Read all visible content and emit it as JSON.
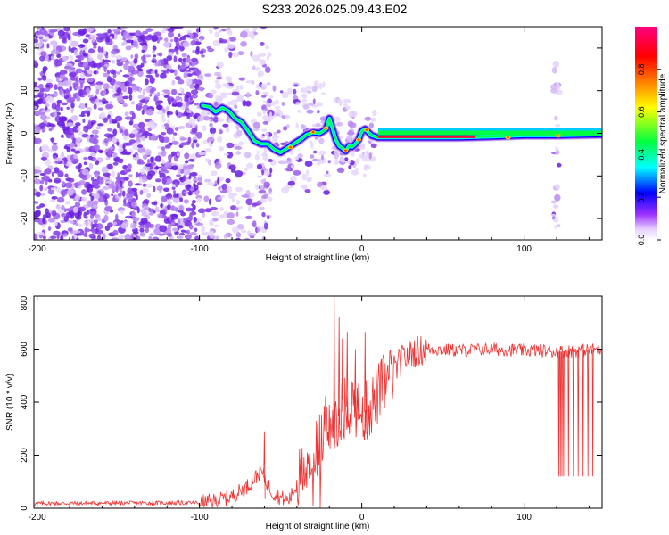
{
  "figure_title": "S233.2026.025.09.43.E02",
  "chart_data": [
    {
      "type": "heatmap",
      "title": "S233.2026.025.09.43.E02",
      "xlabel": "Height of straight line (km)",
      "ylabel": "Frequency (Hz)",
      "xlim": [
        -202,
        148
      ],
      "ylim": [
        -25,
        25
      ],
      "xticks": [
        -200,
        -100,
        0,
        100
      ],
      "xtick_labels": [
        "-200",
        "-100",
        "0",
        "100"
      ],
      "yticks": [
        -20,
        -10,
        0,
        10,
        20
      ],
      "ytick_labels": [
        "-20",
        "-10",
        "0",
        "10",
        "20"
      ],
      "colorbar": {
        "label": "Normalized spectral amplitude",
        "range": [
          0,
          1
        ],
        "ticks": [
          0.0,
          0.2,
          0.4,
          0.6,
          0.8
        ],
        "tick_labels": [
          "0.0",
          "0.2",
          "0.4",
          "0.6",
          "0.8"
        ],
        "colormap": [
          "#ffffff",
          "#d8b4ff",
          "#8a2be2",
          "#0000ff",
          "#00ffff",
          "#00ff00",
          "#ffff00",
          "#ff8000",
          "#ff0000",
          "#ff0080"
        ]
      },
      "ridge": {
        "x": [
          -98,
          -94,
          -90,
          -86,
          -82,
          -78,
          -74,
          -70,
          -66,
          -62,
          -58,
          -54,
          -50,
          -46,
          -42,
          -38,
          -34,
          -30,
          -26,
          -22,
          -20,
          -18,
          -16,
          -14,
          -12,
          -10,
          -8,
          -6,
          -4,
          -2,
          0,
          2,
          6,
          10,
          20,
          40,
          60,
          80,
          100,
          120,
          148
        ],
        "y": [
          6.5,
          6.2,
          5.0,
          6.0,
          5.2,
          3.5,
          2.5,
          0.5,
          -1.8,
          -2.5,
          -2.5,
          -3.8,
          -4.5,
          -3.5,
          -2.5,
          -1.5,
          -0.3,
          0.2,
          0.0,
          1.0,
          3.5,
          1.0,
          -1.5,
          -3.0,
          -3.5,
          -4.2,
          -3.0,
          -3.2,
          -2.5,
          -1.5,
          0.5,
          1.0,
          -0.5,
          -1.0,
          -1.0,
          -1.0,
          -1.0,
          -0.8,
          -0.5,
          -0.5,
          -0.3
        ]
      }
    },
    {
      "type": "line",
      "title": "",
      "xlabel": "Height of straight line (km)",
      "ylabel": "SNR (10 * v/v)",
      "xlim": [
        -202,
        148
      ],
      "ylim": [
        0,
        800
      ],
      "xticks": [
        -200,
        -100,
        0,
        100
      ],
      "xtick_labels": [
        "-200",
        "-100",
        "0",
        "100"
      ],
      "yticks": [
        0,
        200,
        400,
        600,
        800
      ],
      "ytick_labels": [
        "0",
        "200",
        "400",
        "600",
        "800"
      ],
      "color": "#ee3333",
      "envelope": {
        "x": [
          -202,
          -120,
          -100,
          -90,
          -80,
          -70,
          -62,
          -58,
          -55,
          -50,
          -45,
          -40,
          -35,
          -30,
          -25,
          -20,
          -15,
          -10,
          -5,
          0,
          5,
          10,
          15,
          20,
          25,
          30,
          40,
          60,
          80,
          100,
          110,
          120,
          148
        ],
        "y": [
          18,
          20,
          20,
          28,
          45,
          85,
          140,
          90,
          60,
          40,
          30,
          85,
          170,
          210,
          250,
          300,
          340,
          380,
          400,
          350,
          380,
          430,
          480,
          520,
          560,
          585,
          600,
          595,
          600,
          595,
          595,
          590,
          600
        ]
      },
      "spikes": [
        {
          "x": -17,
          "y": 800
        },
        {
          "x": -14,
          "y": 720
        },
        {
          "x": -12,
          "y": 640
        },
        {
          "x": -9,
          "y": 665
        },
        {
          "x": -4,
          "y": 600
        },
        {
          "x": 2,
          "y": 665
        },
        {
          "x": -60,
          "y": 290
        }
      ],
      "dropouts_x": [
        121,
        122,
        123,
        124,
        127,
        130,
        133,
        136,
        139,
        142
      ]
    }
  ]
}
